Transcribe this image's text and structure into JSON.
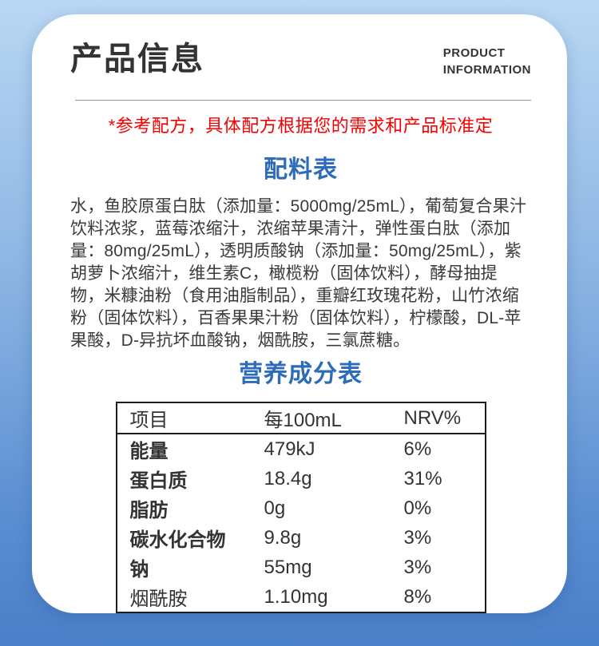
{
  "header": {
    "title": "产品信息",
    "subtitle_line1": "PRODUCT",
    "subtitle_line2": "INFORMATION"
  },
  "note": "*参考配方，具体配方根据您的需求和产品标准定",
  "ingredients": {
    "heading": "配料表",
    "text": "水，鱼胶原蛋白肽（添加量：5000mg/25mL），葡萄复合果汁饮料浓浆，蓝莓浓缩汁，浓缩苹果清汁，弹性蛋白肽（添加量：80mg/25mL），透明质酸钠（添加量：50mg/25mL），紫胡萝卜浓缩汁，维生素C，橄榄粉（固体饮料），酵母抽提物，米糠油粉（食用油脂制品），重瓣红玫瑰花粉，山竹浓缩粉（固体饮料），百香果果汁粉（固体饮料），柠檬酸，DL-苹果酸，D-异抗坏血酸钠，烟酰胺，三氯蔗糖。"
  },
  "nutrition": {
    "heading": "营养成分表",
    "columns": {
      "item": "项目",
      "per": "每100mL",
      "nrv": "NRV%"
    },
    "rows": [
      {
        "name": "能量",
        "per": "479kJ",
        "nrv": "6%"
      },
      {
        "name": "蛋白质",
        "per": "18.4g",
        "nrv": "31%"
      },
      {
        "name": "脂肪",
        "per": "0g",
        "nrv": "0%"
      },
      {
        "name": "碳水化合物",
        "per": "9.8g",
        "nrv": "3%"
      },
      {
        "name": "钠",
        "per": "55mg",
        "nrv": "3%"
      },
      {
        "name": "烟酰胺",
        "per": "1.10mg",
        "nrv": "8%"
      }
    ]
  },
  "colors": {
    "heading_blue": "#2d6cb8",
    "note_red": "#f40000",
    "text_dark": "#333333",
    "background_top": "#b9d7f3",
    "background_bottom": "#4a80c8",
    "card_white": "#ffffff"
  }
}
